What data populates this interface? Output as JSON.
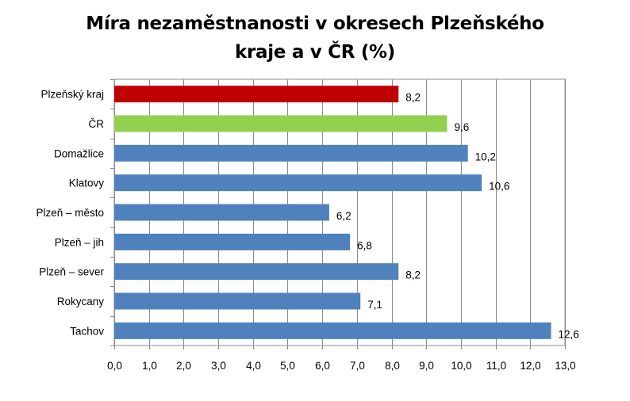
{
  "chart_data": {
    "type": "bar",
    "orientation": "horizontal",
    "title_lines": [
      "Míra nezaměstnanosti v okresech Plzeňského",
      "kraje a v ČR (%)"
    ],
    "categories": [
      "Plzeňský kraj",
      "ČR",
      "Domažlice",
      "Klatovy",
      "Plzeň – město",
      "Plzeň – jih",
      "Plzeň – sever",
      "Rokycany",
      "Tachov"
    ],
    "values": [
      8.2,
      9.6,
      10.2,
      10.6,
      6.2,
      6.8,
      8.2,
      7.1,
      12.6
    ],
    "data_labels": [
      "8,2",
      "9,6",
      "10,2",
      "10,6",
      "6,2",
      "6,8",
      "8,2",
      "7,1",
      "12,6"
    ],
    "bar_colors": [
      "#c00000",
      "#92d050",
      "#4f81bd",
      "#4f81bd",
      "#4f81bd",
      "#4f81bd",
      "#4f81bd",
      "#4f81bd",
      "#4f81bd"
    ],
    "x_ticks": [
      "0,0",
      "1,0",
      "2,0",
      "3,0",
      "4,0",
      "5,0",
      "6,0",
      "7,0",
      "8,0",
      "9,0",
      "10,0",
      "11,0",
      "12,0",
      "13,0"
    ],
    "xlim": [
      0,
      13
    ],
    "xlabel": "",
    "ylabel": "",
    "grid": "vertical",
    "legend": "none"
  }
}
